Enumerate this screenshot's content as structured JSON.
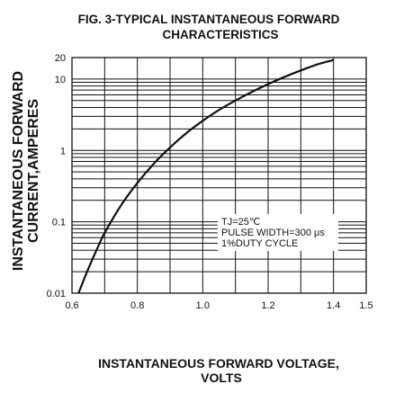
{
  "chart_data": {
    "type": "line",
    "title_lines": [
      "FIG. 3-TYPICAL INSTANTANEOUS FORWARD",
      "CHARACTERISTICS"
    ],
    "xlabel_lines": [
      "INSTANTANEOUS FORWARD VOLTAGE,",
      "VOLTS"
    ],
    "ylabel_lines": [
      "INSTANTANEOUS FORWARD",
      "CURRENT,AMPERES"
    ],
    "x_scale": "linear",
    "y_scale": "log",
    "xlim": [
      0.6,
      1.5
    ],
    "ylim": [
      0.01,
      20
    ],
    "x_ticks": [
      0.6,
      0.8,
      1.0,
      1.2,
      1.4,
      1.5
    ],
    "x_tick_labels": [
      "0.6",
      "0.8",
      "1.0",
      "1.2",
      "1.4",
      "1.5"
    ],
    "y_ticks": [
      0.01,
      0.1,
      1,
      10,
      20
    ],
    "y_tick_labels": [
      "0.01",
      "0.1",
      "1",
      "10",
      "20"
    ],
    "grid": true,
    "annotations": [
      "TJ=25℃",
      "PULSE WIDTH=300 μs",
      "1%DUTY CYCLE"
    ],
    "series": [
      {
        "x": [
          0.62,
          0.65,
          0.68,
          0.7,
          0.75,
          0.8,
          0.85,
          0.9,
          0.95,
          1.0,
          1.05,
          1.1,
          1.15,
          1.2,
          1.25,
          1.3,
          1.35,
          1.4
        ],
        "y": [
          0.01,
          0.022,
          0.045,
          0.07,
          0.17,
          0.35,
          0.65,
          1.1,
          1.75,
          2.6,
          3.7,
          5.0,
          6.6,
          8.5,
          10.7,
          13.2,
          16.0,
          18.5
        ]
      }
    ]
  }
}
